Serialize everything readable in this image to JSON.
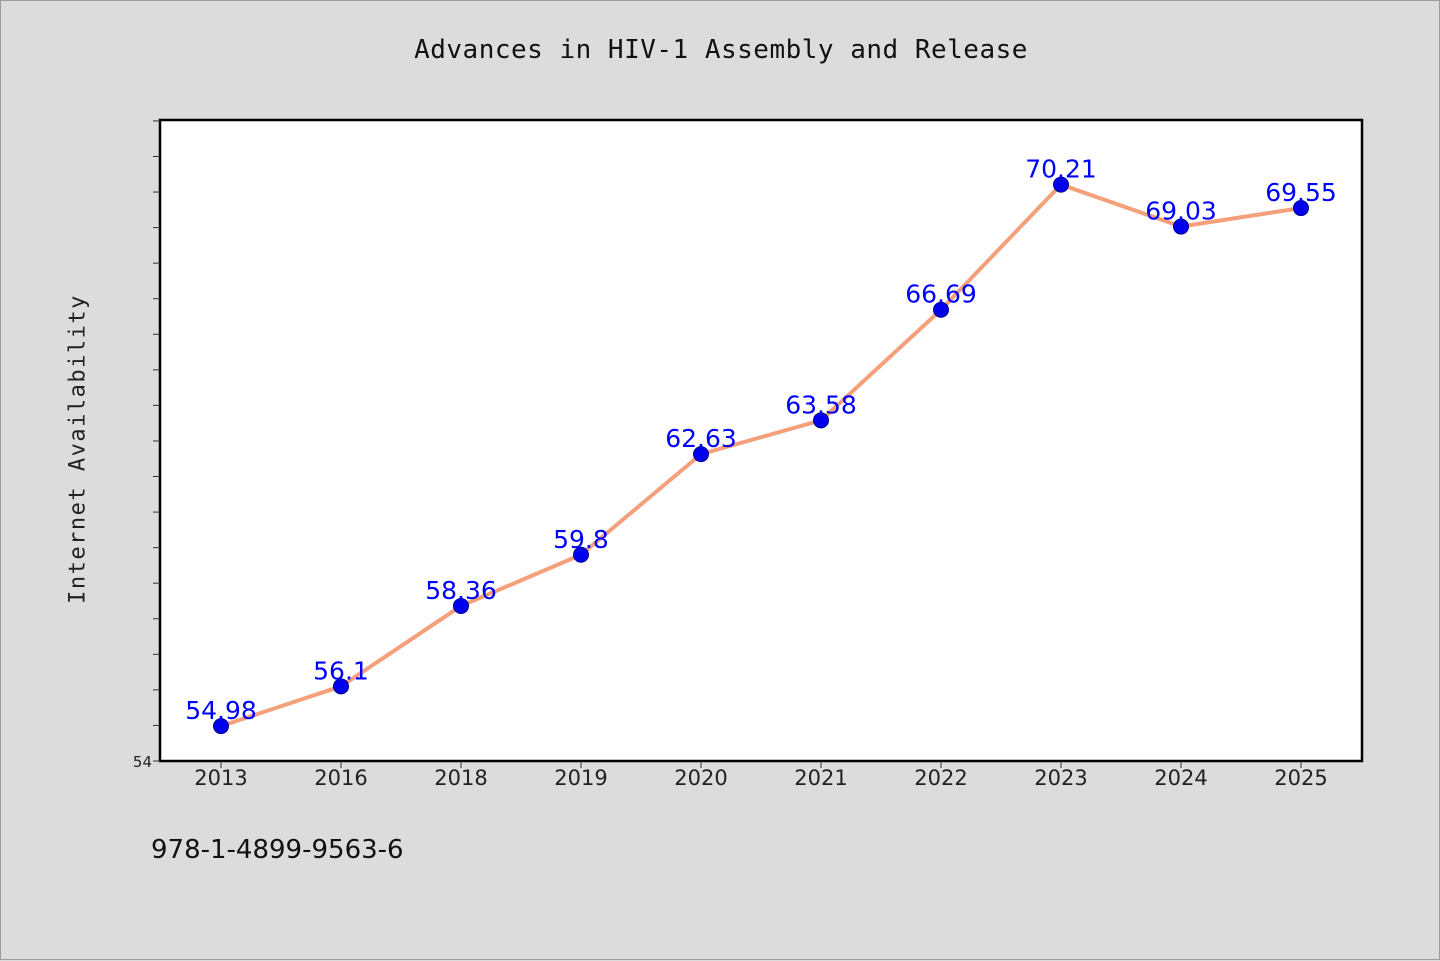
{
  "chart_data": {
    "type": "line",
    "title": "Advances in HIV-1 Assembly and Release",
    "xlabel": "",
    "ylabel": "Internet Availability",
    "categories": [
      "2013",
      "2016",
      "2018",
      "2019",
      "2020",
      "2021",
      "2022",
      "2023",
      "2024",
      "2025"
    ],
    "series": [
      {
        "values": [
          54.98,
          56.1,
          58.36,
          59.8,
          62.63,
          63.58,
          66.69,
          70.21,
          69.03,
          69.55
        ],
        "labels": [
          "54.98",
          "56.1",
          "58.36",
          "59.8",
          "62.63",
          "63.58",
          "66.69",
          "70.21",
          "69.03",
          "69.55"
        ]
      }
    ],
    "ylim": [
      54,
      72
    ],
    "y_tick_labels": [
      "54"
    ],
    "grid": false,
    "colors": {
      "line": "#f4a07a",
      "marker": "#0000ee",
      "label": "#0000ff"
    }
  },
  "footer": {
    "isbn": "978-1-4899-9563-6"
  }
}
